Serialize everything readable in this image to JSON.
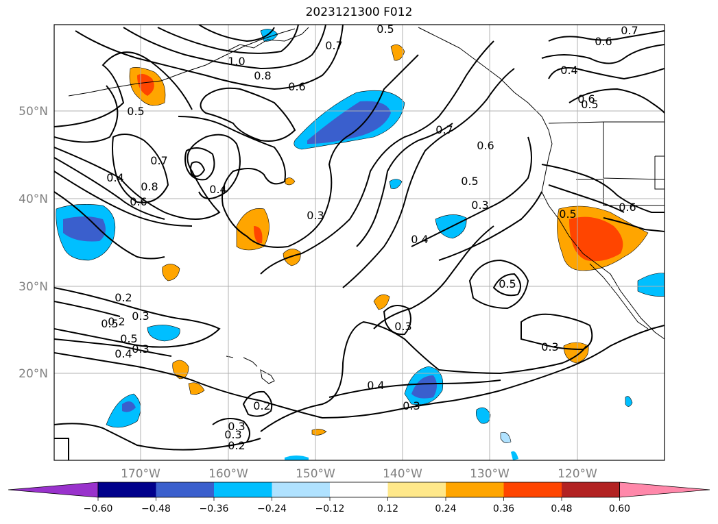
{
  "title": "2023121300 F012",
  "map": {
    "lat_ticks": [
      "50°N",
      "40°N",
      "30°N",
      "20°N"
    ],
    "lon_ticks": [
      "170°W",
      "160°W",
      "150°W",
      "140°W",
      "130°W",
      "120°W"
    ],
    "grid": true
  },
  "contour_labels": [
    "1.0",
    "0.8",
    "0.6",
    "0.7",
    "0.5",
    "0.7",
    "0.8",
    "0.4",
    "0.6",
    "0.4",
    "0.6",
    "0.4",
    "0.7",
    "0.5",
    "0.3",
    "0.2",
    "0.3",
    "0.6",
    "0.5",
    "0.6",
    "0.7",
    "0.6",
    "0.5",
    "0.3",
    "0.4",
    "0.5",
    "0.3",
    "0.3",
    "0.4",
    "0.3",
    "0.2",
    "0.3",
    "0.2",
    "0.5",
    "0.5",
    "0.4",
    "0.3",
    "0.3",
    "0.2",
    "0.5"
  ],
  "colorbar": {
    "labels": [
      "−0.60",
      "−0.48",
      "−0.36",
      "−0.24",
      "−0.12",
      "0.12",
      "0.24",
      "0.36",
      "0.48",
      "0.60"
    ],
    "colors": [
      "#9932cc",
      "#00008b",
      "#3a5fcd",
      "#00bfff",
      "#b0e2ff",
      "#ffffff",
      "#ffe88a",
      "#ffa500",
      "#ff4500",
      "#b22222",
      "#ff88aa"
    ]
  }
}
